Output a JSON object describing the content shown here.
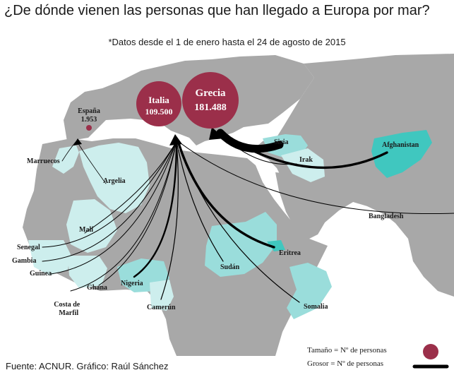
{
  "title": "¿De dónde vienen las personas que han llegado a Europa por mar?",
  "subtitle": "*Datos desde el 1 de enero hasta el 24 de agosto de 2015",
  "colors": {
    "sea": "#ffffff",
    "land": "#a8a8a8",
    "highlight_light": "#cdeeed",
    "highlight_mid": "#9adddb",
    "highlight_strong": "#40c7bf",
    "bubble": "#9b2f4a",
    "arrow": "#000000"
  },
  "destinations": [
    {
      "id": "italia",
      "name": "Italia",
      "value_label": "109.500",
      "value": 109500
    },
    {
      "id": "grecia",
      "name": "Grecia",
      "value_label": "181.488",
      "value": 181488
    },
    {
      "id": "espana",
      "name": "España",
      "value_label": "1.953",
      "value": 1953
    }
  ],
  "origins": [
    {
      "id": "marruecos",
      "name": "Marruecos",
      "to": "espana"
    },
    {
      "id": "argelia",
      "name": "Argelia",
      "to": "espana"
    },
    {
      "id": "mali",
      "name": "Malí",
      "to": "italia"
    },
    {
      "id": "senegal",
      "name": "Senegal",
      "to": "italia"
    },
    {
      "id": "gambia",
      "name": "Gambia",
      "to": "italia"
    },
    {
      "id": "guinea",
      "name": "Guinea",
      "to": "italia"
    },
    {
      "id": "ghana",
      "name": "Ghana",
      "to": "italia"
    },
    {
      "id": "costa_marfil",
      "name": "Costa de\nMarfil",
      "to": "italia"
    },
    {
      "id": "nigeria",
      "name": "Nigeria",
      "to": "italia"
    },
    {
      "id": "camerun",
      "name": "Camerún",
      "to": "italia"
    },
    {
      "id": "sudan",
      "name": "Sudán",
      "to": "italia"
    },
    {
      "id": "eritrea",
      "name": "Eritrea",
      "to": "italia"
    },
    {
      "id": "somalia",
      "name": "Somalia",
      "to": "italia"
    },
    {
      "id": "bangladesh",
      "name": "Bangladesh",
      "to": "italia"
    },
    {
      "id": "siria",
      "name": "Siria",
      "to": "grecia"
    },
    {
      "id": "irak",
      "name": "Irak",
      "to": "grecia"
    },
    {
      "id": "afghanistan",
      "name": "Afghanistan",
      "to": "grecia"
    }
  ],
  "legend": {
    "size_label": "Tamaño = Nº de personas",
    "width_label": "Grosor = Nº de personas"
  },
  "footer": "Fuente: ACNUR. Gráfico: Raúl Sánchez"
}
